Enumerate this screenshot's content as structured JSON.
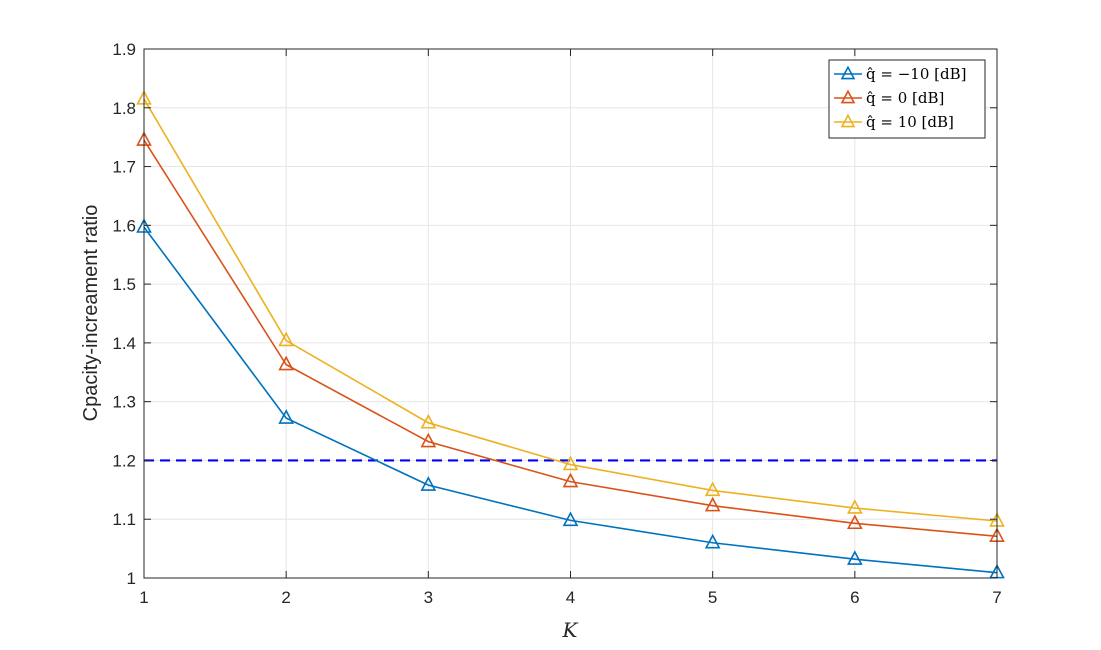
{
  "chart_data": {
    "type": "line",
    "xlabel": "K",
    "ylabel": "Cpacity-increament ratio",
    "xlim": [
      1,
      7
    ],
    "ylim": [
      1,
      1.9
    ],
    "xticks": [
      "1",
      "2",
      "3",
      "4",
      "5",
      "6",
      "7"
    ],
    "yticks": [
      "1",
      "1.1",
      "1.2",
      "1.3",
      "1.4",
      "1.5",
      "1.6",
      "1.7",
      "1.8",
      "1.9"
    ],
    "grid": true,
    "legend_position": "top-right",
    "x": [
      1,
      2,
      3,
      4,
      5,
      6,
      7
    ],
    "series": [
      {
        "name": "q̂ = −10 [dB]",
        "color": "#0072bd",
        "marker": "triangle",
        "values": [
          1.597,
          1.272,
          1.158,
          1.098,
          1.06,
          1.032,
          1.009
        ]
      },
      {
        "name": "q̂ = 0 [dB]",
        "color": "#d95319",
        "marker": "triangle",
        "values": [
          1.745,
          1.363,
          1.232,
          1.164,
          1.123,
          1.093,
          1.071
        ]
      },
      {
        "name": "q̂ = 10 [dB]",
        "color": "#edb120",
        "marker": "triangle",
        "values": [
          1.815,
          1.404,
          1.264,
          1.193,
          1.149,
          1.119,
          1.097
        ]
      }
    ],
    "reference_line": {
      "y": 1.2,
      "color": "#0000ff",
      "style": "dashed"
    }
  }
}
